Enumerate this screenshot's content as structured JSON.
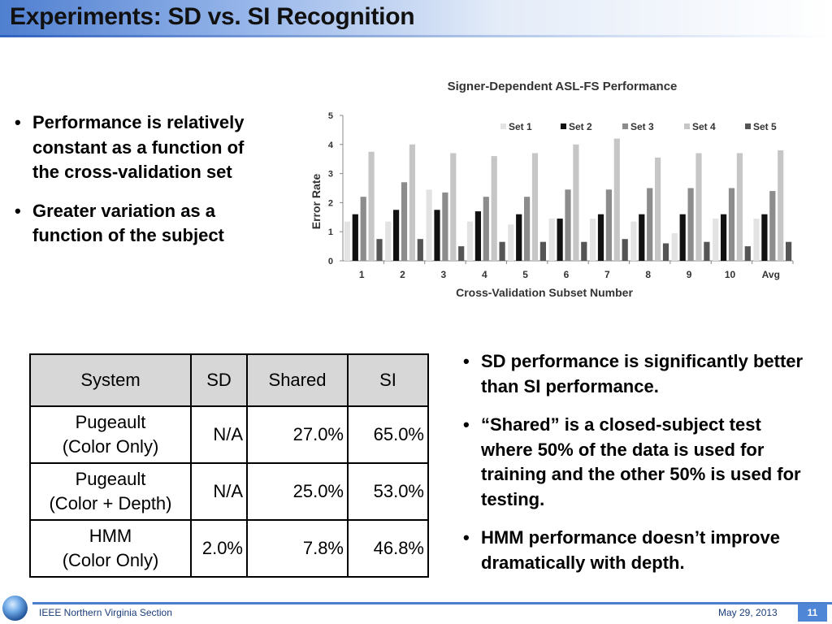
{
  "slide": {
    "title": "Experiments: SD vs. SI Recognition"
  },
  "left_bullets": [
    "Performance is relatively constant as a function of the cross-validation set",
    "Greater variation as a function of the subject"
  ],
  "right_bullets": [
    "SD performance is significantly better than SI performance.",
    "“Shared” is a closed-subject test where 50% of the data is used for training and the other 50% is used for testing.",
    "HMM performance doesn’t improve dramatically with depth."
  ],
  "table": {
    "headers": [
      "System",
      "SD",
      "Shared",
      "SI"
    ],
    "rows": [
      {
        "system_line1": "Pugeault",
        "system_line2": "(Color Only)",
        "sd": "N/A",
        "shared": "27.0%",
        "si": "65.0%"
      },
      {
        "system_line1": "Pugeault",
        "system_line2": "(Color + Depth)",
        "sd": "N/A",
        "shared": "25.0%",
        "si": "53.0%"
      },
      {
        "system_line1": "HMM",
        "system_line2": "(Color Only)",
        "sd": "2.0%",
        "shared": "7.8%",
        "si": "46.8%"
      }
    ]
  },
  "footer": {
    "org": "IEEE Northern Virginia Section",
    "date": "May 29, 2013",
    "page": "11"
  },
  "chart_data": {
    "type": "bar",
    "title": "Signer-Dependent ASL-FS  Performance",
    "xlabel": "Cross-Validation Subset Number",
    "ylabel": "Error Rate",
    "ylim": [
      0,
      5
    ],
    "yticks": [
      "0",
      "1",
      "2",
      "3",
      "4",
      "5"
    ],
    "categories": [
      "1",
      "2",
      "3",
      "4",
      "5",
      "6",
      "7",
      "8",
      "9",
      "10",
      "Avg"
    ],
    "legend_position": "top-right",
    "grid": false,
    "series": [
      {
        "name": "Set 1",
        "color": "#e3e3e3",
        "values": [
          1.35,
          1.35,
          2.45,
          1.35,
          1.25,
          1.45,
          1.45,
          1.35,
          0.95,
          1.45,
          1.45
        ]
      },
      {
        "name": "Set 2",
        "color": "#111111",
        "values": [
          1.6,
          1.75,
          1.75,
          1.7,
          1.6,
          1.45,
          1.6,
          1.6,
          1.6,
          1.6,
          1.6
        ]
      },
      {
        "name": "Set 3",
        "color": "#8c8c8c",
        "values": [
          2.2,
          2.7,
          2.35,
          2.2,
          2.2,
          2.45,
          2.45,
          2.5,
          2.5,
          2.5,
          2.4
        ]
      },
      {
        "name": "Set 4",
        "color": "#c6c6c6",
        "values": [
          3.75,
          4.0,
          3.7,
          3.6,
          3.7,
          4.0,
          4.2,
          3.55,
          3.7,
          3.7,
          3.8
        ]
      },
      {
        "name": "Set 5",
        "color": "#555555",
        "values": [
          0.75,
          0.75,
          0.5,
          0.65,
          0.65,
          0.65,
          0.75,
          0.6,
          0.65,
          0.5,
          0.65
        ]
      }
    ]
  }
}
